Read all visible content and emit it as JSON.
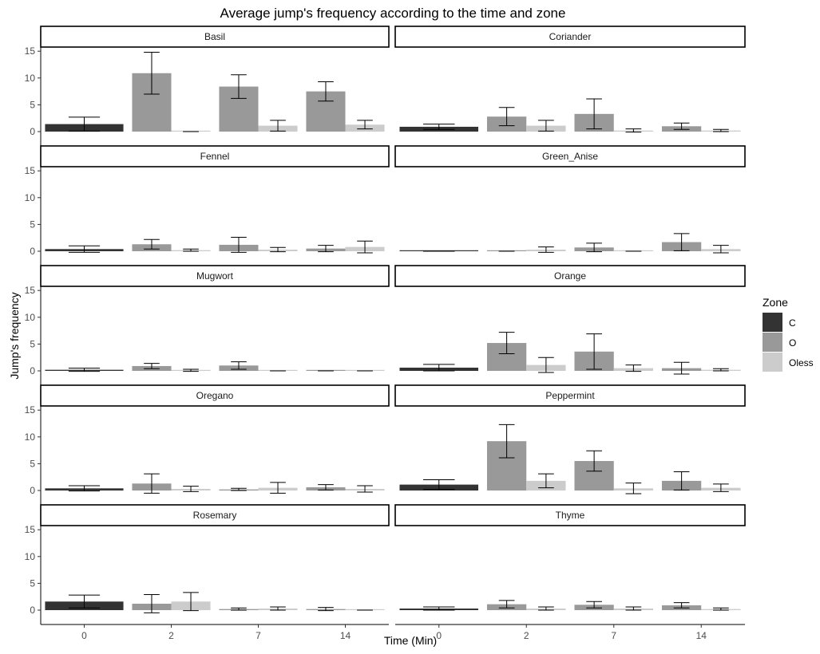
{
  "chart_data": {
    "type": "bar",
    "title": "Average jump's frequency according to the time and zone",
    "xlabel": "Time (Min)",
    "ylabel": "Jump's frequency",
    "categories": [
      "0",
      "2",
      "7",
      "14"
    ],
    "y_ticks": [
      "0",
      "5",
      "10",
      "15"
    ],
    "ylim": [
      0,
      15
    ],
    "grid": false,
    "legend": {
      "title": "Zone",
      "position": "right",
      "entries": [
        {
          "name": "C",
          "color": "#333333"
        },
        {
          "name": "O",
          "color": "#999999"
        },
        {
          "name": "Oless",
          "color": "#cccccc"
        }
      ]
    },
    "zones": [
      "C",
      "O",
      "Oless"
    ],
    "bar_colors": {
      "C": "#333333",
      "O": "#999999",
      "Oless": "#cccccc"
    },
    "panels": [
      {
        "name": "Basil",
        "data": {
          "0": {
            "C": [
              1.4,
              1.3
            ]
          },
          "2": {
            "O": [
              10.9,
              3.9
            ],
            "Oless": [
              0,
              0
            ]
          },
          "7": {
            "O": [
              8.4,
              2.2
            ],
            "Oless": [
              1.1,
              1.0
            ]
          },
          "14": {
            "O": [
              7.5,
              1.8
            ],
            "Oless": [
              1.3,
              0.8
            ]
          }
        }
      },
      {
        "name": "Coriander",
        "data": {
          "0": {
            "C": [
              0.9,
              0.5
            ]
          },
          "2": {
            "O": [
              2.8,
              1.7
            ],
            "Oless": [
              1.1,
              1.0
            ]
          },
          "7": {
            "O": [
              3.3,
              2.8
            ],
            "Oless": [
              0.2,
              0.3
            ]
          },
          "14": {
            "O": [
              1.0,
              0.6
            ],
            "Oless": [
              0.2,
              0.2
            ]
          }
        }
      },
      {
        "name": "Fennel",
        "data": {
          "0": {
            "C": [
              0.4,
              0.6
            ]
          },
          "2": {
            "O": [
              1.3,
              0.9
            ],
            "Oless": [
              0.2,
              0.2
            ]
          },
          "7": {
            "O": [
              1.2,
              1.4
            ],
            "Oless": [
              0.3,
              0.4
            ]
          },
          "14": {
            "O": [
              0.5,
              0.6
            ],
            "Oless": [
              0.8,
              1.1
            ]
          }
        }
      },
      {
        "name": "Green_Anise",
        "data": {
          "0": {
            "C": [
              0,
              0
            ]
          },
          "2": {
            "O": [
              0,
              0
            ],
            "Oless": [
              0.3,
              0.5
            ]
          },
          "7": {
            "O": [
              0.7,
              0.8
            ],
            "Oless": [
              0,
              0
            ]
          },
          "14": {
            "O": [
              1.7,
              1.6
            ],
            "Oless": [
              0.4,
              0.7
            ]
          }
        }
      },
      {
        "name": "Mugwort",
        "data": {
          "0": {
            "C": [
              0.2,
              0.3
            ]
          },
          "2": {
            "O": [
              0.9,
              0.5
            ],
            "Oless": [
              0.1,
              0.2
            ]
          },
          "7": {
            "O": [
              1.0,
              0.7
            ],
            "Oless": [
              0,
              0
            ]
          },
          "14": {
            "O": [
              0,
              0
            ],
            "Oless": [
              0,
              0
            ]
          }
        }
      },
      {
        "name": "Orange",
        "data": {
          "0": {
            "C": [
              0.6,
              0.6
            ]
          },
          "2": {
            "O": [
              5.2,
              2.0
            ],
            "Oless": [
              1.1,
              1.4
            ]
          },
          "7": {
            "O": [
              3.6,
              3.3
            ],
            "Oless": [
              0.5,
              0.6
            ]
          },
          "14": {
            "O": [
              0.5,
              1.1
            ],
            "Oless": [
              0.2,
              0.2
            ]
          }
        }
      },
      {
        "name": "Oregano",
        "data": {
          "0": {
            "C": [
              0.4,
              0.5
            ]
          },
          "2": {
            "O": [
              1.3,
              1.8
            ],
            "Oless": [
              0.3,
              0.5
            ]
          },
          "7": {
            "O": [
              0.2,
              0.2
            ],
            "Oless": [
              0.5,
              1.0
            ]
          },
          "14": {
            "O": [
              0.6,
              0.5
            ],
            "Oless": [
              0.3,
              0.6
            ]
          }
        }
      },
      {
        "name": "Peppermint",
        "data": {
          "0": {
            "C": [
              1.1,
              0.9
            ]
          },
          "2": {
            "O": [
              9.2,
              3.1
            ],
            "Oless": [
              1.8,
              1.3
            ]
          },
          "7": {
            "O": [
              5.5,
              1.9
            ],
            "Oless": [
              0.4,
              1.0
            ]
          },
          "14": {
            "O": [
              1.8,
              1.7
            ],
            "Oless": [
              0.5,
              0.7
            ]
          }
        }
      },
      {
        "name": "Rosemary",
        "data": {
          "0": {
            "C": [
              1.6,
              1.2
            ]
          },
          "2": {
            "O": [
              1.2,
              1.7
            ],
            "Oless": [
              1.6,
              1.7
            ]
          },
          "7": {
            "O": [
              0.2,
              0.2
            ],
            "Oless": [
              0.3,
              0.3
            ]
          },
          "14": {
            "O": [
              0.2,
              0.3
            ],
            "Oless": [
              0,
              0
            ]
          }
        }
      },
      {
        "name": "Thyme",
        "data": {
          "0": {
            "C": [
              0.3,
              0.3
            ]
          },
          "2": {
            "O": [
              1.1,
              0.7
            ],
            "Oless": [
              0.3,
              0.3
            ]
          },
          "7": {
            "O": [
              1.0,
              0.6
            ],
            "Oless": [
              0.3,
              0.3
            ]
          },
          "14": {
            "O": [
              0.9,
              0.5
            ],
            "Oless": [
              0.2,
              0.2
            ]
          }
        }
      }
    ]
  }
}
